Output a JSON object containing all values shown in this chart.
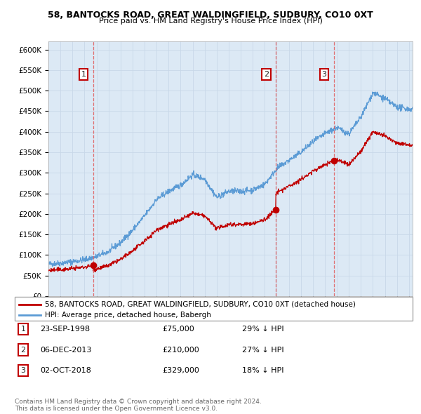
{
  "title": "58, BANTOCKS ROAD, GREAT WALDINGFIELD, SUDBURY, CO10 0XT",
  "subtitle": "Price paid vs. HM Land Registry's House Price Index (HPI)",
  "ylabel_ticks": [
    "£0",
    "£50K",
    "£100K",
    "£150K",
    "£200K",
    "£250K",
    "£300K",
    "£350K",
    "£400K",
    "£450K",
    "£500K",
    "£550K",
    "£600K"
  ],
  "ytick_values": [
    0,
    50000,
    100000,
    150000,
    200000,
    250000,
    300000,
    350000,
    400000,
    450000,
    500000,
    550000,
    600000
  ],
  "xlim_start": 1995.0,
  "xlim_end": 2025.3,
  "ylim_max": 620000,
  "chart_bg": "#dce9f5",
  "hpi_color": "#5b9bd5",
  "price_color": "#c00000",
  "vline_color": "#e06060",
  "sale_dates": [
    1998.73,
    2013.92,
    2018.75
  ],
  "sale_prices": [
    75000,
    210000,
    329000
  ],
  "sale_labels": [
    "1",
    "2",
    "3"
  ],
  "legend_price_label": "58, BANTOCKS ROAD, GREAT WALDINGFIELD, SUDBURY, CO10 0XT (detached house)",
  "legend_hpi_label": "HPI: Average price, detached house, Babergh",
  "table_data": [
    [
      "1",
      "23-SEP-1998",
      "£75,000",
      "29% ↓ HPI"
    ],
    [
      "2",
      "06-DEC-2013",
      "£210,000",
      "27% ↓ HPI"
    ],
    [
      "3",
      "02-OCT-2018",
      "£329,000",
      "18% ↓ HPI"
    ]
  ],
  "footer": "Contains HM Land Registry data © Crown copyright and database right 2024.\nThis data is licensed under the Open Government Licence v3.0.",
  "background_color": "#ffffff",
  "grid_color": "#c8d8e8"
}
